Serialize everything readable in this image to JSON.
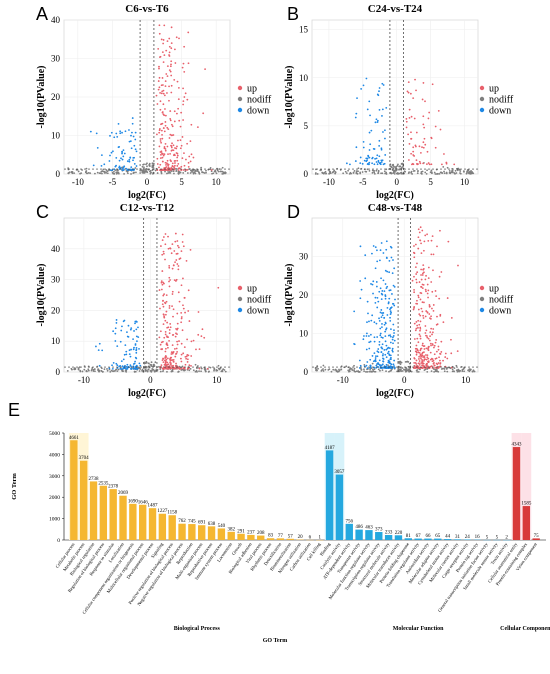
{
  "volcano_panels": [
    {
      "letter": "A",
      "title": "C6-vs-T6",
      "xlabel": "log2(FC)",
      "ylabel": "-log10(PValue)",
      "legend": [
        "up",
        "nodiff",
        "down"
      ],
      "xlim": [
        -12,
        12
      ],
      "ylim": [
        0,
        40
      ],
      "xticks": [
        "-10",
        "-5",
        "0",
        "5",
        "10"
      ],
      "yticks": [
        "0",
        "10",
        "20",
        "30",
        "40"
      ]
    },
    {
      "letter": "B",
      "title": "C24-vs-T24",
      "xlabel": "log2(FC)",
      "ylabel": "-log10(PValue)",
      "legend": [
        "up",
        "nodiff",
        "down"
      ],
      "xlim": [
        -12.5,
        12
      ],
      "ylim": [
        0,
        16
      ],
      "xticks": [
        "-10",
        "-5",
        "0",
        "5",
        "10"
      ],
      "yticks": [
        "0",
        "5",
        "10",
        "15"
      ]
    },
    {
      "letter": "C",
      "title": "C12-vs-T12",
      "xlabel": "log2(FC)",
      "ylabel": "-log10(PValue)",
      "legend": [
        "up",
        "nodiff",
        "down"
      ],
      "xlim": [
        -13,
        12
      ],
      "ylim": [
        0,
        50
      ],
      "xticks": [
        "-10",
        "0",
        "10"
      ],
      "yticks": [
        "0",
        "10",
        "20",
        "30",
        "40"
      ]
    },
    {
      "letter": "D",
      "title": "C48-vs-T48",
      "xlabel": "log2(FC)",
      "ylabel": "-log10(PValue)",
      "legend": [
        "up",
        "nodiff",
        "down"
      ],
      "xlim": [
        -15,
        12
      ],
      "ylim": [
        0,
        40
      ],
      "xticks": [
        "-10",
        "0",
        "10"
      ],
      "yticks": [
        "0",
        "10",
        "20",
        "30"
      ]
    }
  ],
  "colors": {
    "up": "#e8606b",
    "nodiff": "#7f7f7f",
    "down": "#1e88e5",
    "bp": "#f5b731",
    "mf": "#25a8df",
    "cc": "#d83a3a",
    "bp_bg": "#fff5d6",
    "mf_bg": "#d7f2fa",
    "cc_bg": "#fde1e7"
  },
  "chart_data": {
    "type": "bar",
    "letter": "E",
    "ylabel": "GO Term",
    "xlabel": "GO Term",
    "ylim": [
      0,
      5000
    ],
    "yticks": [
      "0",
      "1000",
      "2000",
      "3000",
      "4000",
      "5000"
    ],
    "series": [
      {
        "name": "Biological Process",
        "categories": [
          "Cellular process",
          "Metabolic process",
          "Biological regulation",
          "Regulation of biological process",
          "Response to stimulus",
          "Localization",
          "Cellular component organization or biogenesis",
          "Multicellular organismal process",
          "Developmental process",
          "Signaling",
          "Positive regulation of biological process",
          "Negative regulation of biological process",
          "Reproduction",
          "Multi-organism process",
          "Reproductive process",
          "Immune system process",
          "Locomotion",
          "Growth",
          "Biological adhesion",
          "Viral process",
          "Rhythmic process",
          "Detoxification",
          "Biomineralization",
          "Nitrogen utilization",
          "Carbon utilization",
          "Cell killing"
        ],
        "values": [
          4661,
          3704,
          2738,
          2535,
          2378,
          2069,
          1690,
          1646,
          1487,
          1227,
          1158,
          762,
          745,
          691,
          638,
          540,
          382,
          291,
          237,
          208,
          83,
          77,
          57,
          20,
          6,
          1
        ]
      },
      {
        "name": "Molecular Function",
        "categories": [
          "Binding",
          "Catalytic activity",
          "ATP-dependent activity",
          "Transporter activity",
          "Molecular function regulator activity",
          "Transcription regulator activity",
          "Structural molecule activity",
          "Molecular transducer activity",
          "Protein-folding chaperone",
          "Translation regulator activity",
          "Antioxidant activity",
          "Molecular adaptor activity",
          "Cytoskeletal motor activity",
          "Molecular carrier activity",
          "Cargo receptor activity",
          "Protein tag activity",
          "General transcription initiation factor activity",
          "Small molecule sensor activity",
          "Toxin activity"
        ],
        "values": [
          4187,
          3057,
          756,
          486,
          463,
          373,
          233,
          220,
          81,
          67,
          66,
          65,
          44,
          31,
          24,
          16,
          5,
          5,
          2
        ]
      },
      {
        "name": "Cellular Component",
        "categories": [
          "Cellular anatomical entity",
          "Protein-containing complex",
          "Virion component"
        ],
        "values": [
          4343,
          1585,
          75
        ]
      }
    ]
  }
}
